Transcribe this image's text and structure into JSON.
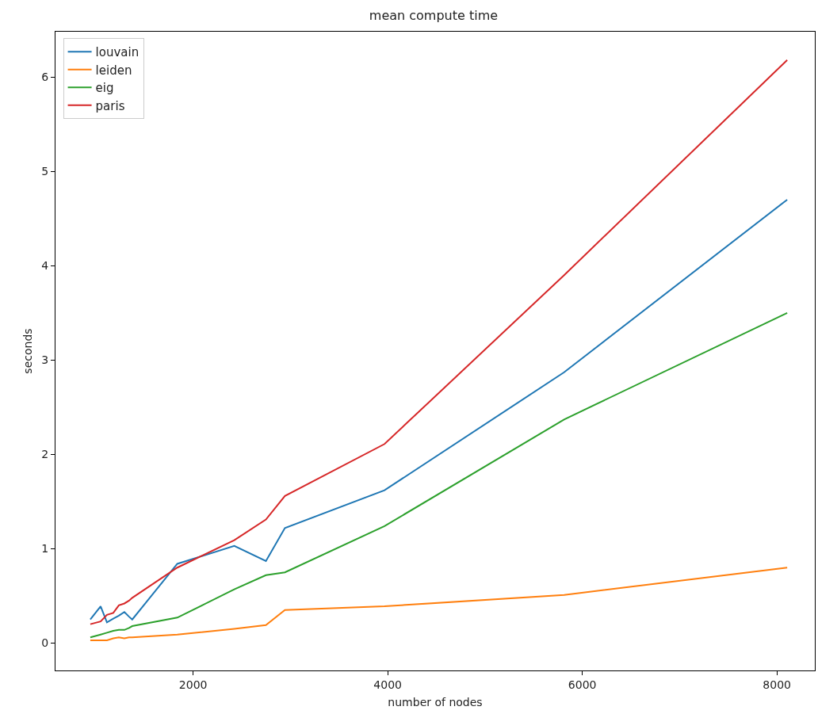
{
  "chart_data": {
    "type": "line",
    "title": "mean compute time",
    "xlabel": "number of nodes",
    "ylabel": "seconds",
    "x": [
      943,
      1049,
      1114,
      1179,
      1236,
      1293,
      1341,
      1374,
      1837,
      2423,
      2748,
      2943,
      3967,
      5813,
      8106
    ],
    "series": [
      {
        "name": "louvain",
        "color": "#1f77b4",
        "values": [
          0.25,
          0.39,
          0.22,
          0.26,
          0.29,
          0.33,
          0.28,
          0.25,
          0.84,
          1.03,
          0.87,
          1.22,
          1.62,
          2.87,
          4.7
        ]
      },
      {
        "name": "leiden",
        "color": "#ff7f0e",
        "values": [
          0.03,
          0.03,
          0.03,
          0.05,
          0.06,
          0.05,
          0.06,
          0.06,
          0.09,
          0.15,
          0.19,
          0.35,
          0.39,
          0.51,
          0.8
        ]
      },
      {
        "name": "eig",
        "color": "#2ca02c",
        "values": [
          0.06,
          0.09,
          0.11,
          0.13,
          0.14,
          0.14,
          0.16,
          0.18,
          0.27,
          0.57,
          0.72,
          0.75,
          1.24,
          2.37,
          3.5
        ]
      },
      {
        "name": "paris",
        "color": "#d62728",
        "values": [
          0.2,
          0.23,
          0.3,
          0.32,
          0.4,
          0.42,
          0.45,
          0.48,
          0.8,
          1.09,
          1.31,
          1.56,
          2.11,
          3.9,
          6.18
        ]
      }
    ],
    "xlim": [
      585,
      8390
    ],
    "xticks": [
      2000,
      4000,
      6000,
      8000
    ],
    "ylim": [
      -0.29,
      6.48
    ],
    "yticks": [
      0,
      1,
      2,
      3,
      4,
      5,
      6
    ],
    "legend": "top left",
    "marker": "none",
    "line_style": "solid"
  }
}
